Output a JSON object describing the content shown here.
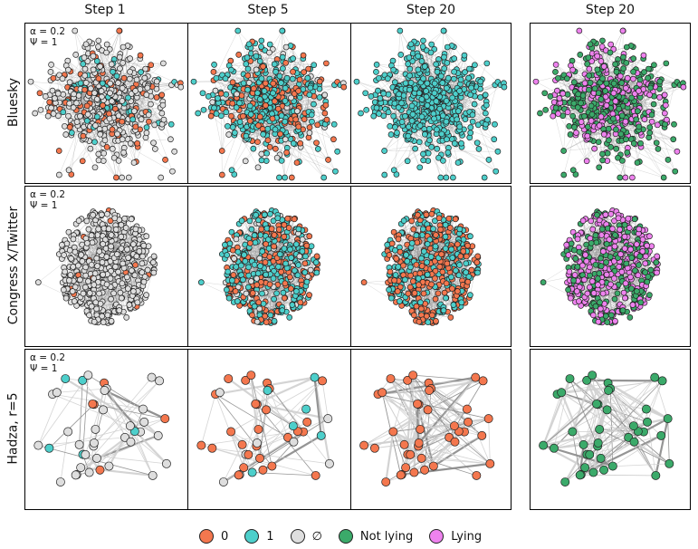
{
  "columns": [
    "Step 1",
    "Step 5",
    "Step 20",
    "Step 20"
  ],
  "rows": [
    {
      "label": "Bluesky",
      "params": [
        "α = 0.2",
        "Ψ = 1"
      ],
      "panels": [
        {
          "mix": {
            "0": 0.18,
            "1": 0.1,
            "empty": 0.72
          }
        },
        {
          "mix": {
            "0": 0.3,
            "1": 0.62,
            "empty": 0.08
          }
        },
        {
          "mix": {
            "0": 0.0,
            "1": 1.0,
            "empty": 0.0
          }
        },
        {
          "mix": {
            "Not lying": 0.62,
            "Lying": 0.38
          }
        }
      ]
    },
    {
      "label": "Congress X/Twitter",
      "params": [
        "α = 0.2",
        "Ψ = 1"
      ],
      "panels": [
        {
          "mix": {
            "0": 0.03,
            "1": 0.0,
            "empty": 0.97
          }
        },
        {
          "mix": {
            "0": 0.35,
            "1": 0.55,
            "empty": 0.1
          }
        },
        {
          "mix": {
            "0": 0.52,
            "1": 0.48,
            "empty": 0.0
          }
        },
        {
          "mix": {
            "Not lying": 0.4,
            "Lying": 0.6
          }
        }
      ]
    },
    {
      "label": "Hadza, r=5",
      "params": [
        "α = 0.2",
        "Ψ = 1"
      ],
      "panels": [
        {
          "mix": {
            "0": 0.12,
            "1": 0.06,
            "empty": 0.82
          }
        },
        {
          "mix": {
            "0": 0.58,
            "1": 0.14,
            "empty": 0.28
          }
        },
        {
          "mix": {
            "0": 1.0,
            "1": 0.0,
            "empty": 0.0
          }
        },
        {
          "mix": {
            "Not lying": 1.0,
            "Lying": 0.0
          }
        }
      ]
    }
  ],
  "legend": [
    {
      "label": "0",
      "color": "#F4774E"
    },
    {
      "label": "1",
      "color": "#4DCFCB"
    },
    {
      "label": "∅",
      "color": "#DEDEDE"
    },
    {
      "label": "Not lying",
      "color": "#3BAA6A"
    },
    {
      "label": "Lying",
      "color": "#EE82EE"
    }
  ],
  "colors": {
    "0": "#F4774E",
    "1": "#4DCFCB",
    "empty": "#DEDEDE",
    "Not lying": "#3BAA6A",
    "Lying": "#EE82EE"
  }
}
